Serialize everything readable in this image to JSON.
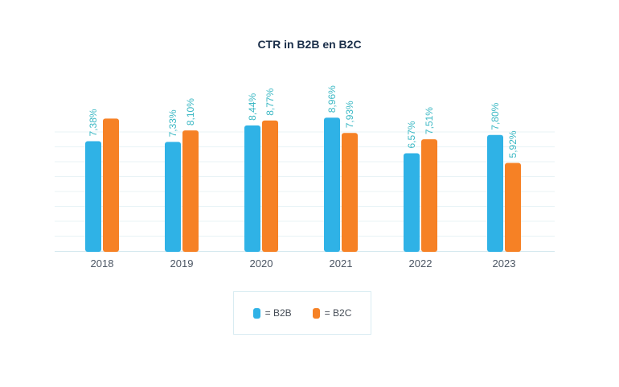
{
  "chart_data": {
    "type": "bar",
    "title": "CTR in B2B en B2C",
    "categories": [
      "2018",
      "2019",
      "2020",
      "2021",
      "2022",
      "2023"
    ],
    "series": [
      {
        "name": "B2B",
        "values": [
          7.38,
          7.33,
          8.44,
          8.96,
          6.57,
          7.8
        ],
        "labels": [
          "7,38%",
          "7,33%",
          "8,44%",
          "8,96%",
          "6,57%",
          "7,80%"
        ],
        "color": "#2fb2e6",
        "label_color": "#3bb8c4"
      },
      {
        "name": "B2C",
        "values": [
          8.9,
          8.1,
          8.77,
          7.93,
          7.51,
          5.92
        ],
        "labels": [
          "",
          "8,10%",
          "8,77%",
          "7,93%",
          "7,51%",
          "5,92%"
        ],
        "color": "#f68125",
        "label_color": "#3bb8c4"
      }
    ],
    "ylim": [
      0,
      10
    ],
    "grid": true,
    "legend_position": "bottom-center",
    "legend": [
      {
        "marker_text": "= B2B",
        "color": "#2fb2e6"
      },
      {
        "marker_text": "= B2C",
        "color": "#f68125"
      }
    ]
  }
}
